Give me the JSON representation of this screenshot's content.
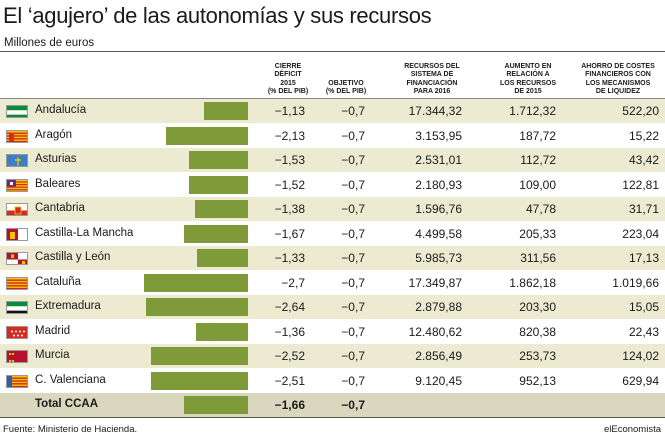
{
  "title": "El ‘agujero’ de las autonomías y sus recursos",
  "subtitle": "Millones de euros",
  "headers": {
    "deficit": [
      "CIERRE",
      "DÉFICIT",
      "2015",
      "(% DEL PIB)"
    ],
    "objetivo": [
      "OBJETIVO",
      "(% DEL PIB)"
    ],
    "recursos": [
      "RECURSOS DEL",
      "SISTEMA DE",
      "FINANCIACIÓN",
      "PARA 2016"
    ],
    "aumento": [
      "AUMENTO EN",
      "RELACIÓN A",
      "LOS RECURSOS",
      "DE 2015"
    ],
    "ahorro": [
      "AHORRO DE COSTES",
      "FINANCIEROS CON",
      "LOS MECANISMOS",
      "DE LIQUIDEZ"
    ]
  },
  "colors": {
    "bar": "#7f9a38",
    "row_shade": "#ecebd2",
    "total_shade": "#d9d8be"
  },
  "chart_data": {
    "type": "table",
    "bar_column": "deficit",
    "bar_max": 2.7,
    "rows": [
      {
        "name": "Andalucía",
        "flag": "andalucia-flag",
        "deficit": -1.13,
        "deficit_text": "−1,13",
        "objetivo": "−0,7",
        "recursos": "17.344,32",
        "aumento": "1.712,32",
        "ahorro": "522,20"
      },
      {
        "name": "Aragón",
        "flag": "aragon-flag",
        "deficit": -2.13,
        "deficit_text": "−2,13",
        "objetivo": "−0,7",
        "recursos": "3.153,95",
        "aumento": "187,72",
        "ahorro": "15,22"
      },
      {
        "name": "Asturias",
        "flag": "asturias-flag",
        "deficit": -1.53,
        "deficit_text": "−1,53",
        "objetivo": "−0,7",
        "recursos": "2.531,01",
        "aumento": "112,72",
        "ahorro": "43,42"
      },
      {
        "name": "Baleares",
        "flag": "baleares-flag",
        "deficit": -1.52,
        "deficit_text": "−1,52",
        "objetivo": "−0,7",
        "recursos": "2.180,93",
        "aumento": "109,00",
        "ahorro": "122,81"
      },
      {
        "name": "Cantabria",
        "flag": "cantabria-flag",
        "deficit": -1.38,
        "deficit_text": "−1,38",
        "objetivo": "−0,7",
        "recursos": "1.596,76",
        "aumento": "47,78",
        "ahorro": "31,71"
      },
      {
        "name": "Castilla-La Mancha",
        "flag": "castilla-la-mancha-flag",
        "deficit": -1.67,
        "deficit_text": "−1,67",
        "objetivo": "−0,7",
        "recursos": "4.499,58",
        "aumento": "205,33",
        "ahorro": "223,04"
      },
      {
        "name": "Castilla y León",
        "flag": "castilla-y-leon-flag",
        "deficit": -1.33,
        "deficit_text": "−1,33",
        "objetivo": "−0,7",
        "recursos": "5.985,73",
        "aumento": "311,56",
        "ahorro": "17,13"
      },
      {
        "name": "Cataluña",
        "flag": "cataluna-flag",
        "deficit": -2.7,
        "deficit_text": "−2,7",
        "objetivo": "−0,7",
        "recursos": "17.349,87",
        "aumento": "1.862,18",
        "ahorro": "1.019,66"
      },
      {
        "name": "Extremadura",
        "flag": "extremadura-flag",
        "deficit": -2.64,
        "deficit_text": "−2,64",
        "objetivo": "−0,7",
        "recursos": "2.879,88",
        "aumento": "203,30",
        "ahorro": "15,05"
      },
      {
        "name": "Madrid",
        "flag": "madrid-flag",
        "deficit": -1.36,
        "deficit_text": "−1,36",
        "objetivo": "−0,7",
        "recursos": "12.480,62",
        "aumento": "820,38",
        "ahorro": "22,43"
      },
      {
        "name": "Murcia",
        "flag": "murcia-flag",
        "deficit": -2.52,
        "deficit_text": "−2,52",
        "objetivo": "−0,7",
        "recursos": "2.856,49",
        "aumento": "253,73",
        "ahorro": "124,02"
      },
      {
        "name": "C. Valenciana",
        "flag": "valenciana-flag",
        "deficit": -2.51,
        "deficit_text": "−2,51",
        "objetivo": "−0,7",
        "recursos": "9.120,45",
        "aumento": "952,13",
        "ahorro": "629,94"
      }
    ],
    "total": {
      "name": "Total CCAA",
      "deficit": -1.66,
      "deficit_text": "−1,66",
      "objetivo": "−0,7"
    }
  },
  "source": "Fuente: Ministerio de Hacienda.",
  "brand": "elEconomista"
}
